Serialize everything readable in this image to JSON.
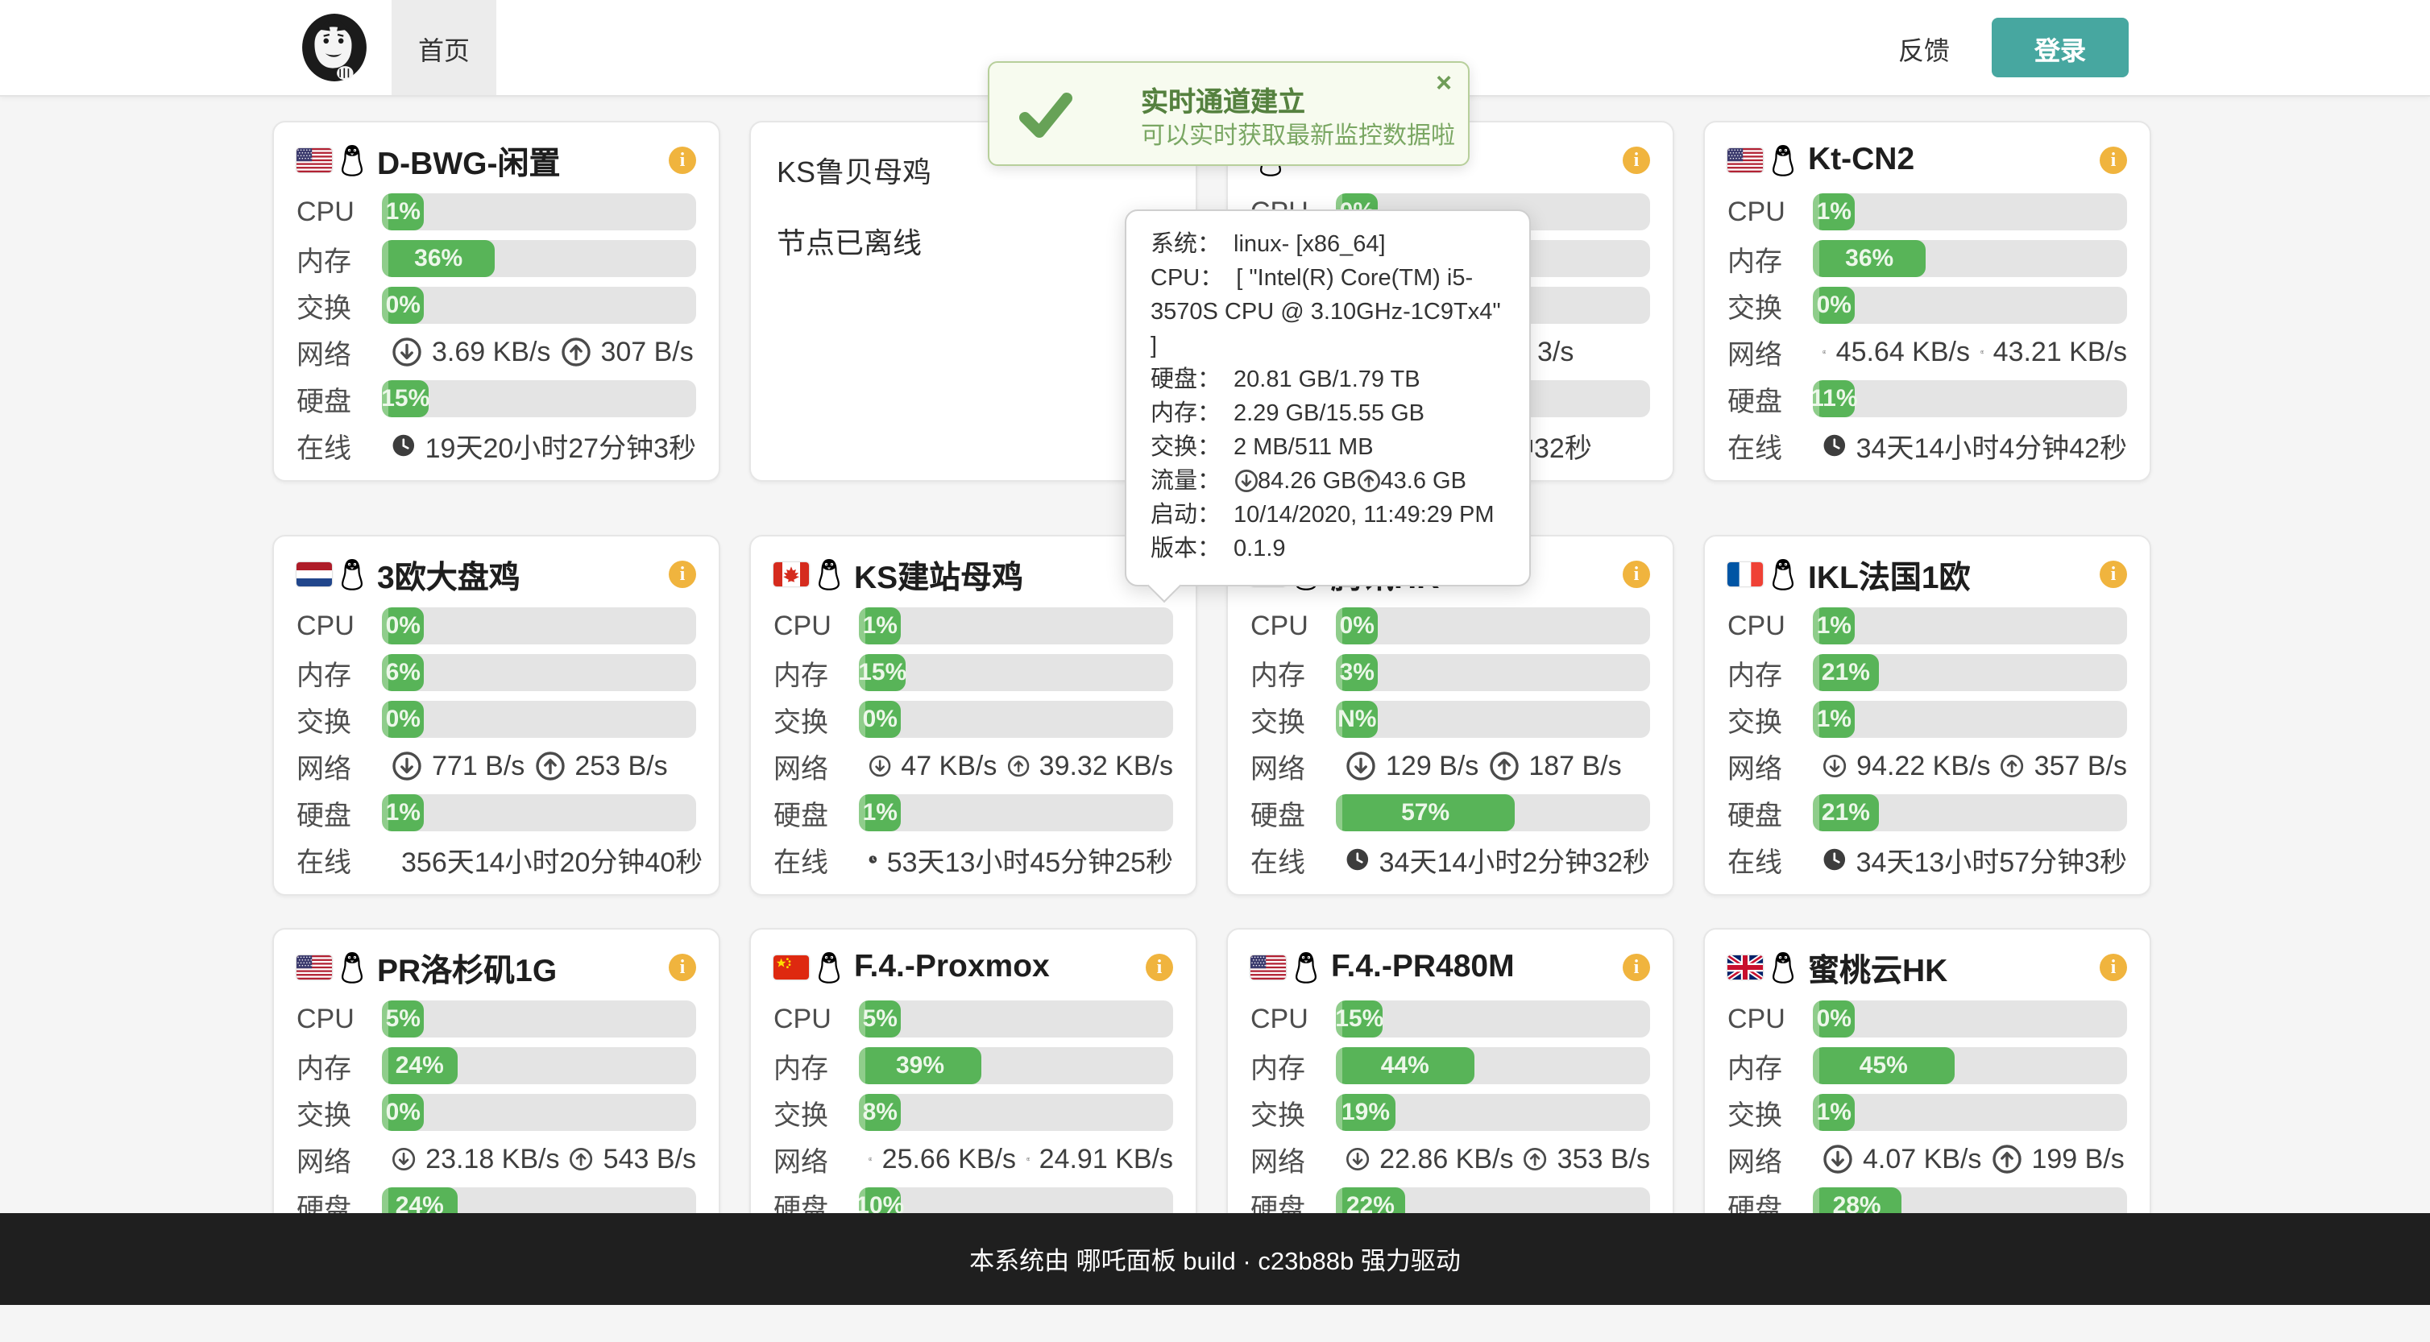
{
  "navbar": {
    "home_tab": "首页",
    "feedback": "反馈",
    "login": "登录"
  },
  "toast": {
    "title": "实时通道建立",
    "message": "可以实时获取最新监控数据啦",
    "close": "×"
  },
  "tooltip": {
    "rows": [
      {
        "label": "系统：",
        "value": "linux- [x86_64]"
      },
      {
        "label": "CPU：",
        "value": "[ \"Intel(R) Core(TM) i5-3570S CPU @ 3.10GHz-1C9Tx4\" ]"
      },
      {
        "label": "硬盘：",
        "value": "20.81 GB/1.79 TB"
      },
      {
        "label": "内存：",
        "value": "2.29 GB/15.55 GB"
      },
      {
        "label": "交换：",
        "value": "2 MB/511 MB"
      },
      {
        "label": "流量：",
        "down": "84.26 GB",
        "up": "43.6 GB"
      },
      {
        "label": "启动：",
        "value": "10/14/2020, 11:49:29 PM"
      },
      {
        "label": "版本：",
        "value": "0.1.9"
      }
    ]
  },
  "stat_labels": {
    "cpu": "CPU",
    "mem": "内存",
    "swap": "交换",
    "net": "网络",
    "disk": "硬盘",
    "uptime": "在线"
  },
  "servers": [
    {
      "name": "D-BWG-闲置",
      "flag": "us",
      "cpu": {
        "pct": 1,
        "label": "1%"
      },
      "mem": {
        "pct": 36,
        "label": "36%"
      },
      "swap": {
        "pct": 0,
        "label": "0%"
      },
      "net_down": "3.69 KB/s",
      "net_up": "307 B/s",
      "disk": {
        "pct": 15,
        "label": "15%"
      },
      "uptime": "19天20小时27分钟3秒"
    },
    {
      "name": "KS鲁贝母鸡",
      "offline": true,
      "offline_text": "节点已离线"
    },
    {
      "name": "",
      "covered": true,
      "cpu": {
        "pct": 0,
        "label": "0%"
      },
      "mem": {
        "pct": 0,
        "label": ""
      },
      "swap": {
        "pct": 0,
        "label": ""
      },
      "net_fragment": "3/s",
      "disk": {
        "pct": 0,
        "label": ""
      },
      "uptime_fragment": "钟32秒"
    },
    {
      "name": "Kt-CN2",
      "flag": "us",
      "cpu": {
        "pct": 1,
        "label": "1%"
      },
      "mem": {
        "pct": 36,
        "label": "36%"
      },
      "swap": {
        "pct": 0,
        "label": "0%"
      },
      "net_down": "45.64 KB/s",
      "net_up": "43.21 KB/s",
      "disk": {
        "pct": 11,
        "label": "11%"
      },
      "uptime": "34天14小时4分钟42秒"
    },
    {
      "name": "3欧大盘鸡",
      "flag": "nl",
      "cpu": {
        "pct": 0,
        "label": "0%"
      },
      "mem": {
        "pct": 6,
        "label": "6%"
      },
      "swap": {
        "pct": 0,
        "label": "0%"
      },
      "net_down": "771 B/s",
      "net_up": "253 B/s",
      "disk": {
        "pct": 1,
        "label": "1%"
      },
      "uptime": "356天14小时20分钟40秒"
    },
    {
      "name": "KS建站母鸡",
      "flag": "ca",
      "cpu": {
        "pct": 1,
        "label": "1%"
      },
      "mem": {
        "pct": 15,
        "label": "15%"
      },
      "swap": {
        "pct": 0,
        "label": "0%"
      },
      "net_down": "47 KB/s",
      "net_up": "39.32 KB/s",
      "disk": {
        "pct": 1,
        "label": "1%"
      },
      "uptime": "53天13小时45分钟25秒"
    },
    {
      "name": "腾讯HK",
      "flag": "hk",
      "cpu": {
        "pct": 0,
        "label": "0%"
      },
      "mem": {
        "pct": 3,
        "label": "3%"
      },
      "swap": {
        "pct": 0,
        "label": "N%"
      },
      "net_down": "129 B/s",
      "net_up": "187 B/s",
      "disk": {
        "pct": 57,
        "label": "57%"
      },
      "uptime": "34天14小时2分钟32秒"
    },
    {
      "name": "IKL法国1欧",
      "flag": "fr",
      "cpu": {
        "pct": 1,
        "label": "1%"
      },
      "mem": {
        "pct": 21,
        "label": "21%"
      },
      "swap": {
        "pct": 1,
        "label": "1%"
      },
      "net_down": "94.22 KB/s",
      "net_up": "357 B/s",
      "disk": {
        "pct": 21,
        "label": "21%"
      },
      "uptime": "34天13小时57分钟3秒"
    },
    {
      "name": "PR洛杉矶1G",
      "flag": "us",
      "cpu": {
        "pct": 5,
        "label": "5%"
      },
      "mem": {
        "pct": 24,
        "label": "24%"
      },
      "swap": {
        "pct": 0,
        "label": "0%"
      },
      "net_down": "23.18 KB/s",
      "net_up": "543 B/s",
      "disk": {
        "pct": 24,
        "label": "24%"
      },
      "uptime": ""
    },
    {
      "name": "F.4.-Proxmox",
      "flag": "cn",
      "cpu": {
        "pct": 5,
        "label": "5%"
      },
      "mem": {
        "pct": 39,
        "label": "39%"
      },
      "swap": {
        "pct": 8,
        "label": "8%"
      },
      "net_down": "25.66 KB/s",
      "net_up": "24.91 KB/s",
      "disk": {
        "pct": 10,
        "label": "10%"
      },
      "uptime": ""
    },
    {
      "name": "F.4.-PR480M",
      "flag": "us",
      "cpu": {
        "pct": 15,
        "label": "15%"
      },
      "mem": {
        "pct": 44,
        "label": "44%"
      },
      "swap": {
        "pct": 19,
        "label": "19%"
      },
      "net_down": "22.86 KB/s",
      "net_up": "353 B/s",
      "disk": {
        "pct": 22,
        "label": "22%"
      },
      "uptime": ""
    },
    {
      "name": "蜜桃云HK",
      "flag": "uk",
      "cpu": {
        "pct": 0,
        "label": "0%"
      },
      "mem": {
        "pct": 45,
        "label": "45%"
      },
      "swap": {
        "pct": 1,
        "label": "1%"
      },
      "net_down": "4.07 KB/s",
      "net_up": "199 B/s",
      "disk": {
        "pct": 28,
        "label": "28%"
      },
      "uptime": ""
    }
  ],
  "footer": {
    "text": "本系统由 哪吒面板 build · c23b88b 强力驱动"
  },
  "colors": {
    "accent_teal": "#47a7a0",
    "bar_green": "#58b458",
    "bar_track": "#e4e4e4",
    "info_orange": "#f0b43e",
    "toast_green": "#67a257",
    "footer_bg": "#1f1f1f"
  }
}
